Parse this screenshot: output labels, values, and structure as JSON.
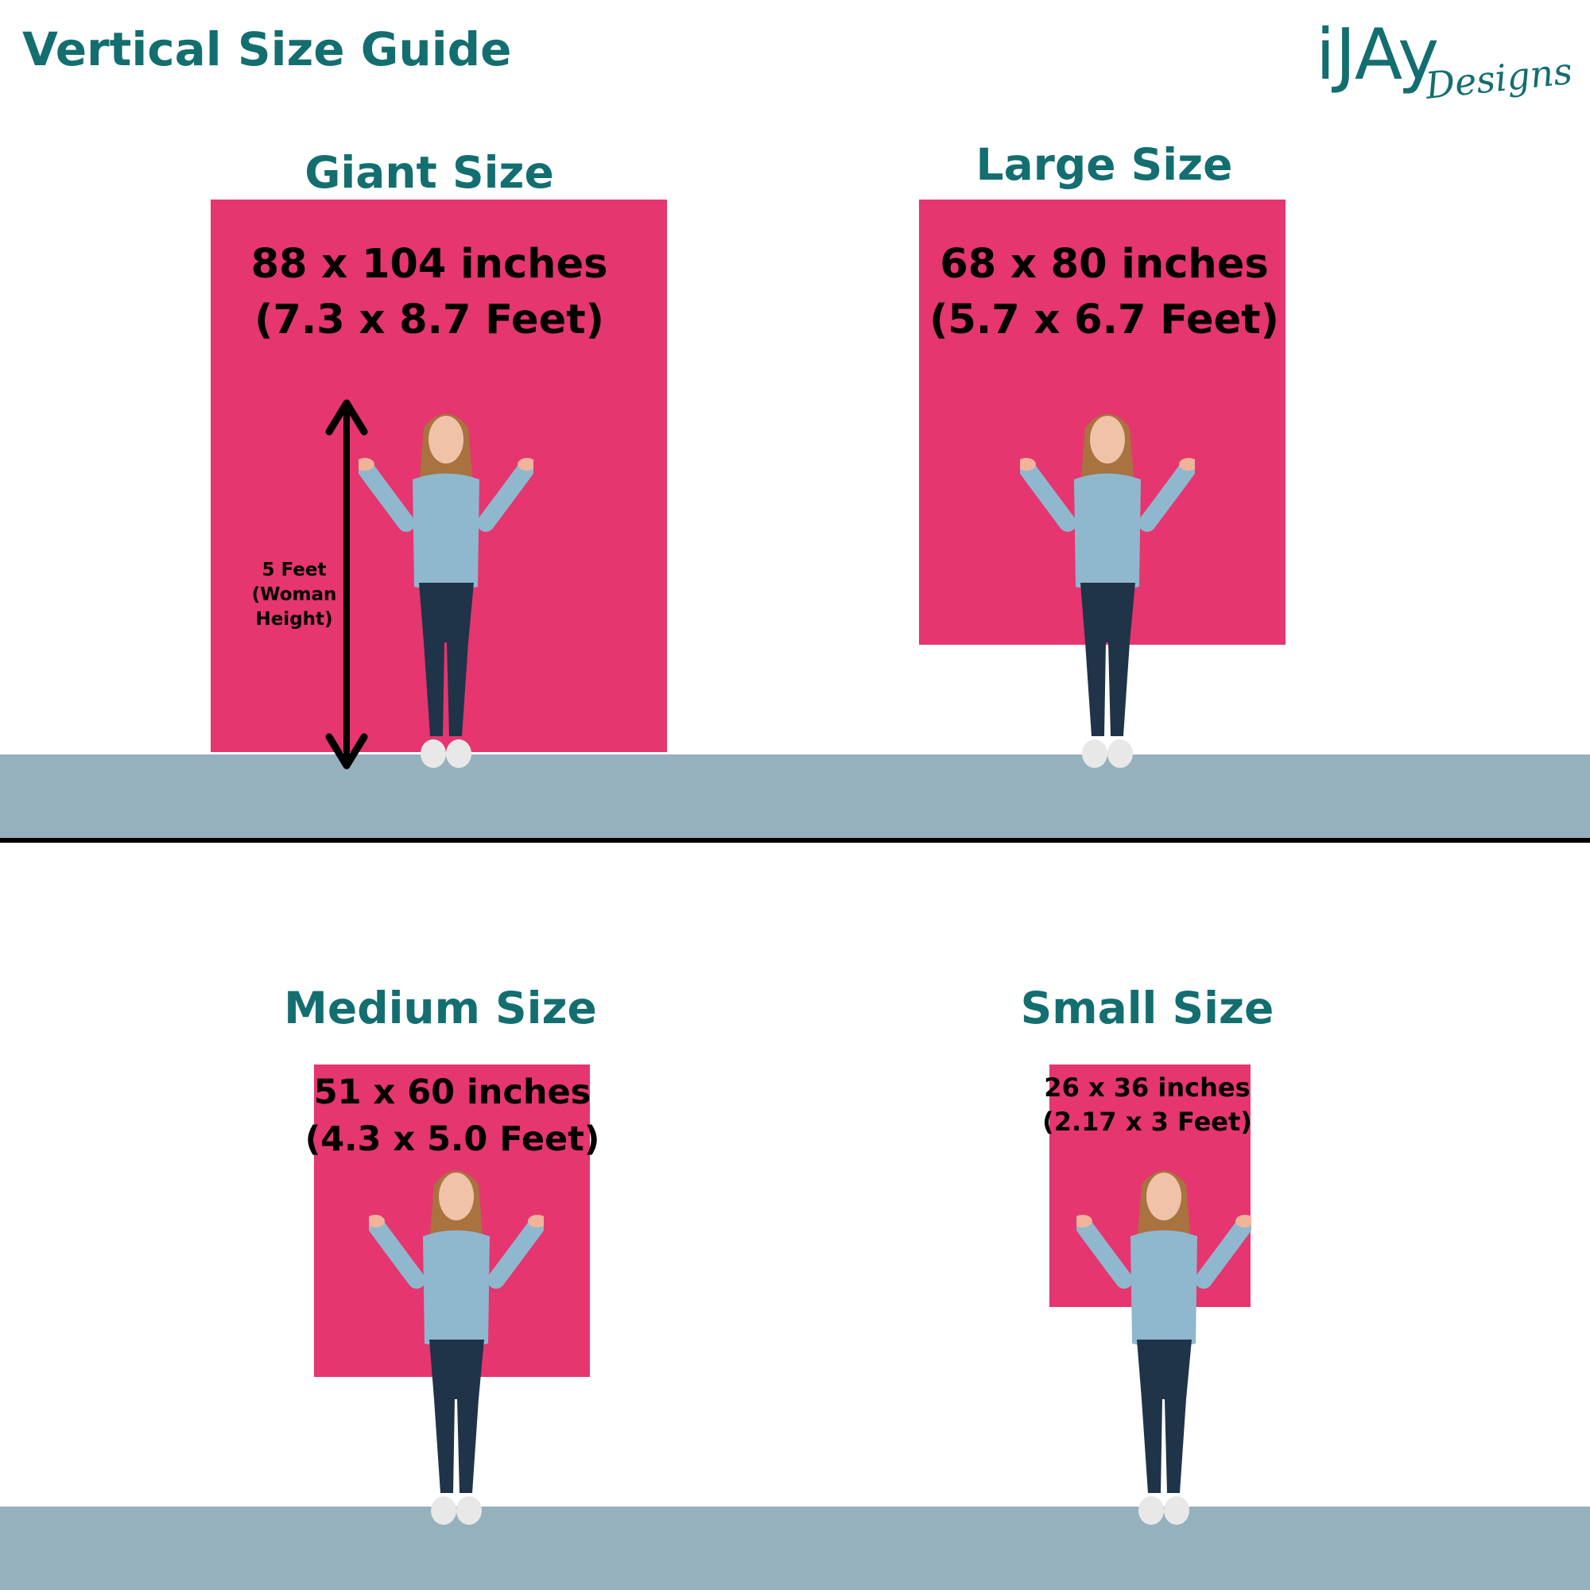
{
  "title": "Vertical Size Guide",
  "logo": {
    "main": "iJAy",
    "script": "Designs"
  },
  "colors": {
    "accent": "#136E70",
    "backdrop": "#E5366F",
    "floor": "#95B1BD"
  },
  "sizes": [
    {
      "name": "Giant Size",
      "inches": "88 x 104 inches",
      "feet": "(7.3 x 8.7 Feet)"
    },
    {
      "name": "Large Size",
      "inches": "68 x 80 inches",
      "feet": "(5.7 x 6.7 Feet)"
    },
    {
      "name": "Medium Size",
      "inches": "51 x 60 inches",
      "feet": "(4.3 x 5.0 Feet)"
    },
    {
      "name": "Small Size",
      "inches": "26 x 36 inches",
      "feet": "(2.17 x 3 Feet)"
    }
  ],
  "height_note": [
    "5 Feet",
    "(Woman",
    "Height)"
  ]
}
